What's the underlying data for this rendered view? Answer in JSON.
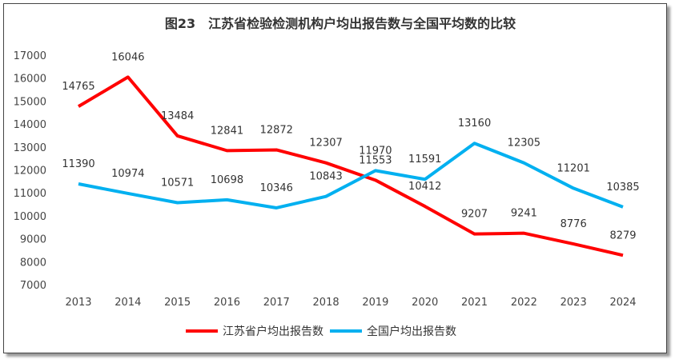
{
  "chart_data": {
    "type": "line",
    "title": "图23　江苏省检验检测机构户均出报告数与全国平均数的比较",
    "categories": [
      "2013",
      "2014",
      "2015",
      "2016",
      "2017",
      "2018",
      "2019",
      "2020",
      "2021",
      "2022",
      "2023",
      "2024"
    ],
    "ylim": [
      7000,
      17000
    ],
    "yticks": [
      7000,
      8000,
      9000,
      10000,
      11000,
      12000,
      13000,
      14000,
      15000,
      16000,
      17000
    ],
    "grid": false,
    "legend": "bottom",
    "series": [
      {
        "name": "江苏省户均出报告数",
        "color": "#FF0000",
        "values": [
          14765,
          16046,
          13484,
          12841,
          12872,
          12307,
          11553,
          10412,
          9207,
          9241,
          8776,
          8279
        ]
      },
      {
        "name": "全国户均出报告数",
        "color": "#00B0F0",
        "values": [
          11390,
          10974,
          10571,
          10698,
          10346,
          10843,
          11970,
          11591,
          13160,
          12305,
          11201,
          10385
        ]
      }
    ]
  }
}
